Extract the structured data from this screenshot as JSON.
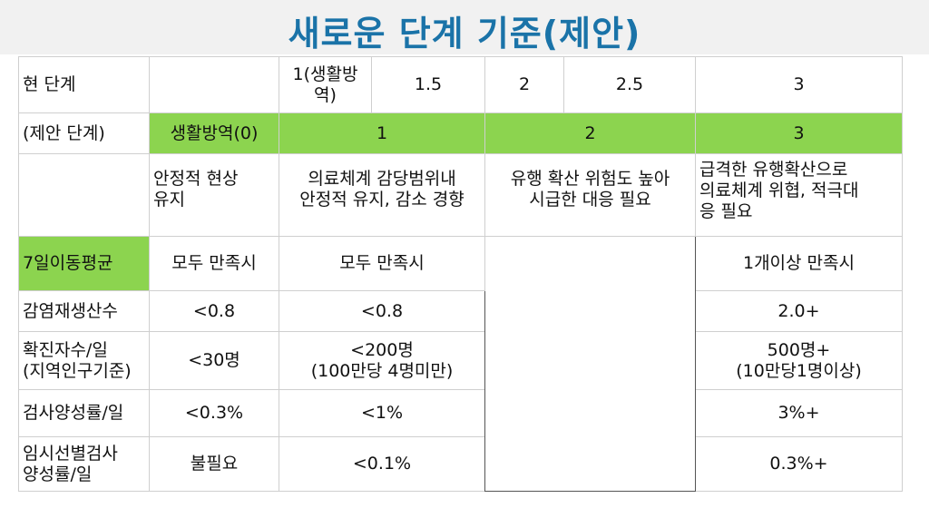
{
  "title": "새로운 단계 기준(제안)",
  "rows": {
    "current": {
      "label": "현 단계",
      "c1": "",
      "c2a": "1(생활방\n역)",
      "c2b": "1.5",
      "c3a": "2",
      "c3b": "2.5",
      "c4": "3"
    },
    "proposed": {
      "label": "(제안 단계)",
      "c1": "생활방역(0)",
      "c2": "1",
      "c3": "2",
      "c4": "3"
    },
    "description": {
      "label": "",
      "c1": "안정적 현상\n유지",
      "c2": "의료체계 감당범위내\n안정적 유지, 감소 경향",
      "c3": "유행 확산 위험도 높아\n시급한 대응 필요",
      "c4": "급격한 유행확산으로\n의료체계 위협, 적극대\n응 필요"
    },
    "avg": {
      "label": "7일이동평균",
      "c1": "모두 만족시",
      "c2": "모두 만족시",
      "c4": "1개이상 만족시"
    },
    "reproduction": {
      "label": "감염재생산수",
      "c1": "<0.8",
      "c2": "<0.8",
      "c4": "2.0+"
    },
    "cases": {
      "label": "확진자수/일\n(지역인구기준)",
      "c1": "<30명",
      "c2": "<200명\n(100만당 4명미만)",
      "c4": "500명+\n(10만당1명이상)"
    },
    "positivity": {
      "label": "검사양성률/일",
      "c1": "<0.3%",
      "c2": "<1%",
      "c4": "3%+"
    },
    "screening": {
      "label": "임시선별검사\n양성률/일",
      "c1": "불필요",
      "c2": "<0.1%",
      "c4": "0.3%+"
    }
  },
  "colors": {
    "title": "#1a73a8",
    "highlight": "#8cd44f"
  }
}
